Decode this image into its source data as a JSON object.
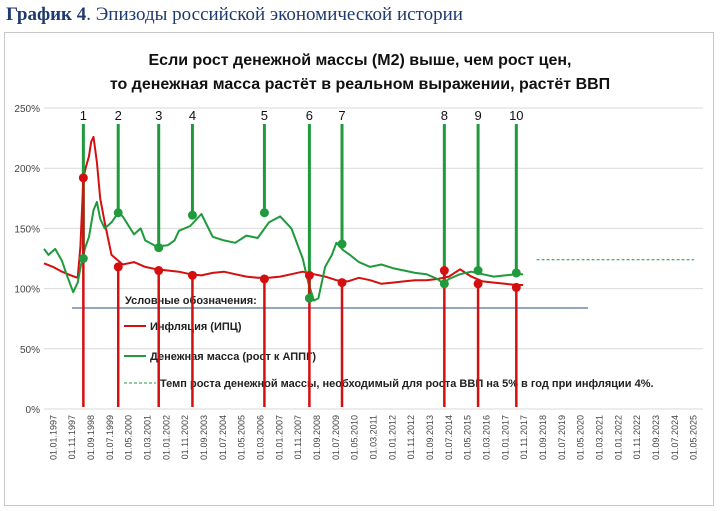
{
  "caption": {
    "label": "График 4",
    "text": ". Эпизоды российской экономической истории"
  },
  "chart_data": {
    "type": "line",
    "title": "Если рост денежной массы (М2) выше, чем рост цен,",
    "subtitle": "то денежная масса растёт в реальном выражении, растёт ВВП",
    "ylim": [
      0,
      250
    ],
    "y_ticks": [
      "0%",
      "50%",
      "100%",
      "150%",
      "200%",
      "250%"
    ],
    "y_tick_values": [
      0,
      50,
      100,
      150,
      200,
      250
    ],
    "x_ticks": [
      "01.01.1997",
      "01.11.1997",
      "01.09.1998",
      "01.07.1999",
      "01.05.2000",
      "01.03.2001",
      "01.01.2002",
      "01.11.2002",
      "01.09.2003",
      "01.07.2004",
      "01.05.2005",
      "01.03.2006",
      "01.01.2007",
      "01.11.2007",
      "01.09.2008",
      "01.07.2009",
      "01.05.2010",
      "01.03.2011",
      "01.01.2012",
      "01.11.2012",
      "01.09.2013",
      "01.07.2014",
      "01.05.2015",
      "01.03.2016",
      "01.01.2017",
      "01.11.2017",
      "01.09.2018",
      "01.07.2019",
      "01.05.2020",
      "01.03.2021",
      "01.01.2022",
      "01.11.2022",
      "01.09.2023",
      "01.07.2024",
      "01.05.2025"
    ],
    "legend_title": "Условные обозначения:",
    "series": [
      {
        "name": "Инфляция (ИПЦ)",
        "color": "#d40f0f",
        "x": [
          1997.0,
          1997.4,
          1997.8,
          1998.2,
          1998.5,
          1998.62,
          1998.75,
          1998.85,
          1999.0,
          1999.1,
          1999.2,
          1999.35,
          1999.5,
          1999.7,
          2000.0,
          2000.5,
          2001.0,
          2001.5,
          2002.0,
          2002.5,
          2003.0,
          2003.5,
          2004.0,
          2004.5,
          2005.0,
          2005.5,
          2006.0,
          2006.5,
          2007.0,
          2007.5,
          2008.0,
          2008.5,
          2009.0,
          2009.5,
          2010.0,
          2010.5,
          2011.0,
          2011.5,
          2012.0,
          2012.5,
          2013.0,
          2013.5,
          2014.0,
          2014.5,
          2015.0,
          2015.5,
          2016.0,
          2016.5,
          2017.0,
          2017.5,
          2018.0,
          2018.3
        ],
        "y": [
          121,
          118,
          114,
          111,
          109,
          135,
          192,
          200,
          210,
          222,
          226,
          205,
          175,
          155,
          128,
          120,
          122,
          118,
          116,
          115,
          114,
          112,
          111,
          113,
          114,
          112,
          110,
          109,
          109,
          110,
          112,
          114,
          112,
          110,
          107,
          106,
          109,
          107,
          104,
          105,
          106,
          107,
          107,
          108,
          110,
          116,
          110,
          106,
          105,
          104,
          103,
          103
        ]
      },
      {
        "name": "Денежная масса (рост к АППГ)",
        "color": "#1f9a3c",
        "x": [
          1997.0,
          1997.2,
          1997.5,
          1997.8,
          1998.0,
          1998.3,
          1998.5,
          1998.7,
          1998.85,
          1999.0,
          1999.2,
          1999.35,
          1999.5,
          1999.7,
          2000.0,
          2000.3,
          2000.5,
          2001.0,
          2001.3,
          2001.5,
          2002.0,
          2002.5,
          2002.8,
          2003.0,
          2003.5,
          2004.0,
          2004.5,
          2005.0,
          2005.5,
          2006.0,
          2006.5,
          2007.0,
          2007.5,
          2008.0,
          2008.5,
          2008.75,
          2009.0,
          2009.2,
          2009.5,
          2009.8,
          2010.0,
          2010.3,
          2010.6,
          2011.0,
          2011.5,
          2012.0,
          2012.5,
          2013.0,
          2013.5,
          2014.0,
          2014.5,
          2014.75,
          2015.0,
          2015.5,
          2016.0,
          2016.5,
          2017.0,
          2017.5,
          2018.0,
          2018.3
        ],
        "y": [
          133,
          128,
          133,
          123,
          112,
          97,
          105,
          125,
          135,
          143,
          165,
          172,
          158,
          150,
          155,
          163,
          160,
          145,
          150,
          140,
          135,
          136,
          140,
          148,
          152,
          162,
          143,
          140,
          138,
          144,
          142,
          155,
          160,
          150,
          125,
          105,
          90,
          92,
          118,
          128,
          138,
          132,
          128,
          122,
          118,
          120,
          117,
          115,
          113,
          112,
          108,
          104,
          108,
          112,
          114,
          112,
          110,
          111,
          112,
          112
        ]
      }
    ],
    "dashed_series": {
      "name": "Темп роста денежной массы, необходимый для роста ВВП на 5% в год при инфляции 4%.",
      "color": "#1f9a3c",
      "x": [
        2018.9,
        2025.9
      ],
      "y": [
        124,
        124
      ]
    },
    "episodes": [
      {
        "label": "1",
        "x": 1998.75,
        "green_y": 125,
        "red_y": 192
      },
      {
        "label": "2",
        "x": 2000.3,
        "green_y": 163,
        "red_y": 118
      },
      {
        "label": "3",
        "x": 2002.1,
        "green_y": 134,
        "red_y": 115
      },
      {
        "label": "4",
        "x": 2003.6,
        "green_y": 161,
        "red_y": 111
      },
      {
        "label": "5",
        "x": 2006.8,
        "green_y": 163,
        "red_y": 108
      },
      {
        "label": "6",
        "x": 2008.8,
        "green_y": 92,
        "red_y": 111
      },
      {
        "label": "7",
        "x": 2010.25,
        "green_y": 137,
        "red_y": 105
      },
      {
        "label": "8",
        "x": 2014.8,
        "green_y": 104,
        "red_y": 115
      },
      {
        "label": "9",
        "x": 2016.3,
        "green_y": 115,
        "red_y": 104
      },
      {
        "label": "10",
        "x": 2018.0,
        "green_y": 113,
        "red_y": 101
      }
    ]
  }
}
